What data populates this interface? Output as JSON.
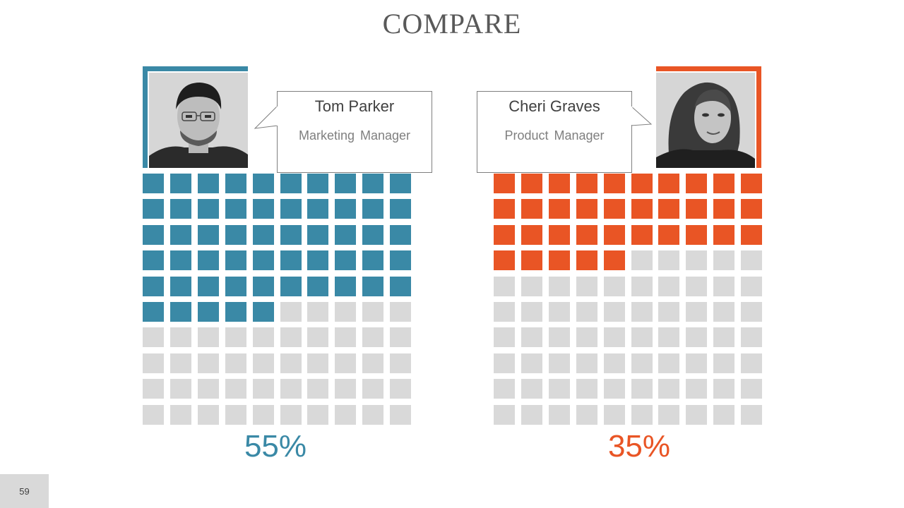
{
  "title": "COMPARE",
  "page_number": "59",
  "colors": {
    "left_accent": "#3a89a6",
    "right_accent": "#e95525",
    "empty_cell": "#d9d9d9"
  },
  "people": [
    {
      "name": "Tom Parker",
      "role": "Marketing Manager",
      "percent_label": "55%",
      "filled_fraction": 0.55
    },
    {
      "name": "Cheri Graves",
      "role": "Product Manager",
      "percent_label": "35%",
      "filled_fraction": 0.35
    }
  ]
}
